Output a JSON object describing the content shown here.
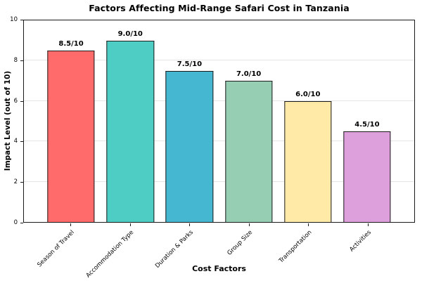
{
  "chart_data": {
    "type": "bar",
    "title": "Factors Affecting Mid-Range Safari Cost in Tanzania",
    "xlabel": "Cost Factors",
    "ylabel": "Impact Level (out of 10)",
    "ylim": [
      0,
      10
    ],
    "y_ticks": [
      0,
      2,
      4,
      6,
      8,
      10
    ],
    "grid": "horizontal-light",
    "legend": "none",
    "categories": [
      "Season of Travel",
      "Accommodation Type",
      "Duration & Parks",
      "Group Size",
      "Transportation",
      "Activities"
    ],
    "values": [
      8.5,
      9.0,
      7.5,
      7.0,
      6.0,
      4.5
    ],
    "value_labels": [
      "8.5/10",
      "9.0/10",
      "7.5/10",
      "7.0/10",
      "6.0/10",
      "4.5/10"
    ],
    "bar_colors": [
      "#FF6B6B",
      "#4ECDC4",
      "#45B7D1",
      "#96CEB4",
      "#FFEAA7",
      "#DDA0DD"
    ],
    "bar_edge_color": "#1a1a1a",
    "grid_color": "#e6e6e6",
    "background_color": "#ffffff"
  }
}
